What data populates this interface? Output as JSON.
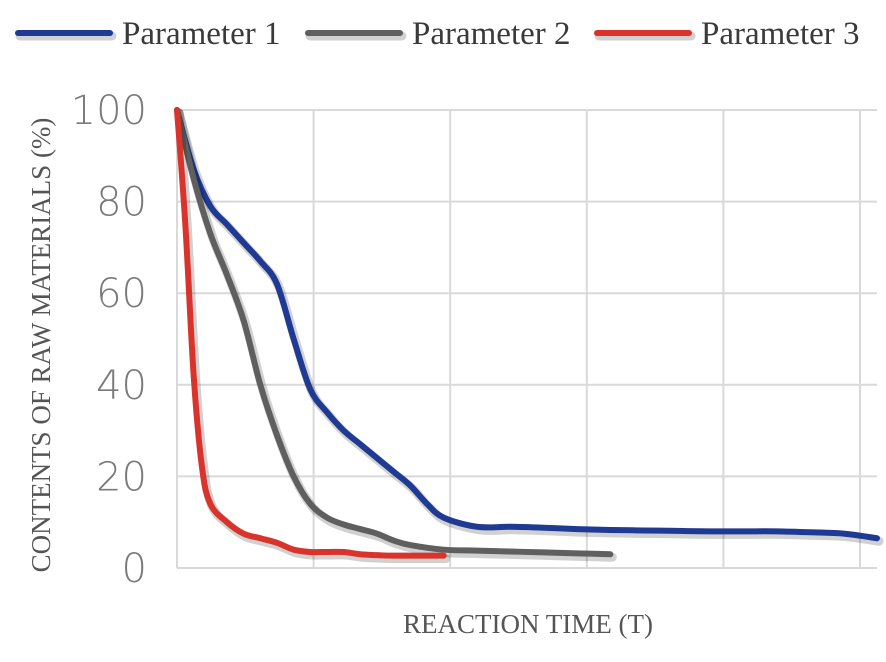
{
  "chart_data": {
    "type": "line",
    "title": "",
    "xlabel": "REACTION TIME (T)",
    "ylabel": "CONTENTS OF RAW MATERIALS (%)",
    "ylim": [
      0,
      100
    ],
    "xlim": [
      0,
      42
    ],
    "yticks": [
      "100",
      "80",
      "60",
      "40",
      "20",
      "0"
    ],
    "grid": true,
    "legend_position": "top",
    "series": [
      {
        "name": "Parameter 1",
        "color": "#1f3a93",
        "x": [
          0,
          1,
          2,
          3,
          4,
          5,
          6,
          7,
          8,
          9,
          10,
          11,
          12,
          13,
          14,
          15,
          16,
          18,
          20,
          22,
          24,
          26,
          28,
          30,
          32,
          34,
          36,
          38,
          40,
          42
        ],
        "y": [
          100,
          87,
          79,
          75,
          71,
          67,
          62,
          50,
          39,
          34,
          30,
          27,
          24,
          21,
          18,
          14,
          11,
          9,
          9,
          8.8,
          8.5,
          8.3,
          8.2,
          8.1,
          8,
          8,
          8,
          7.8,
          7.5,
          6.5
        ]
      },
      {
        "name": "Parameter 2",
        "color": "#5f5f5f",
        "x": [
          0,
          1,
          2,
          3,
          4,
          5,
          6,
          7,
          8,
          9,
          10,
          11,
          12,
          13,
          14,
          16,
          18,
          20,
          22,
          24,
          26
        ],
        "y": [
          100,
          85,
          73,
          64,
          54,
          40,
          29,
          20,
          14,
          11,
          9.5,
          8.5,
          7.5,
          6,
          5,
          4,
          3.8,
          3.6,
          3.4,
          3.2,
          3
        ]
      },
      {
        "name": "Parameter 3",
        "color": "#d9342b",
        "x": [
          0,
          0.5,
          1,
          1.5,
          2,
          3,
          4,
          5,
          6,
          7,
          8,
          9,
          10,
          11,
          12,
          13,
          14,
          15,
          16
        ],
        "y": [
          100,
          75,
          42,
          22,
          14,
          10,
          7.5,
          6.5,
          5.5,
          4,
          3.5,
          3.5,
          3.5,
          3,
          2.8,
          2.7,
          2.7,
          2.7,
          2.7
        ]
      }
    ]
  }
}
